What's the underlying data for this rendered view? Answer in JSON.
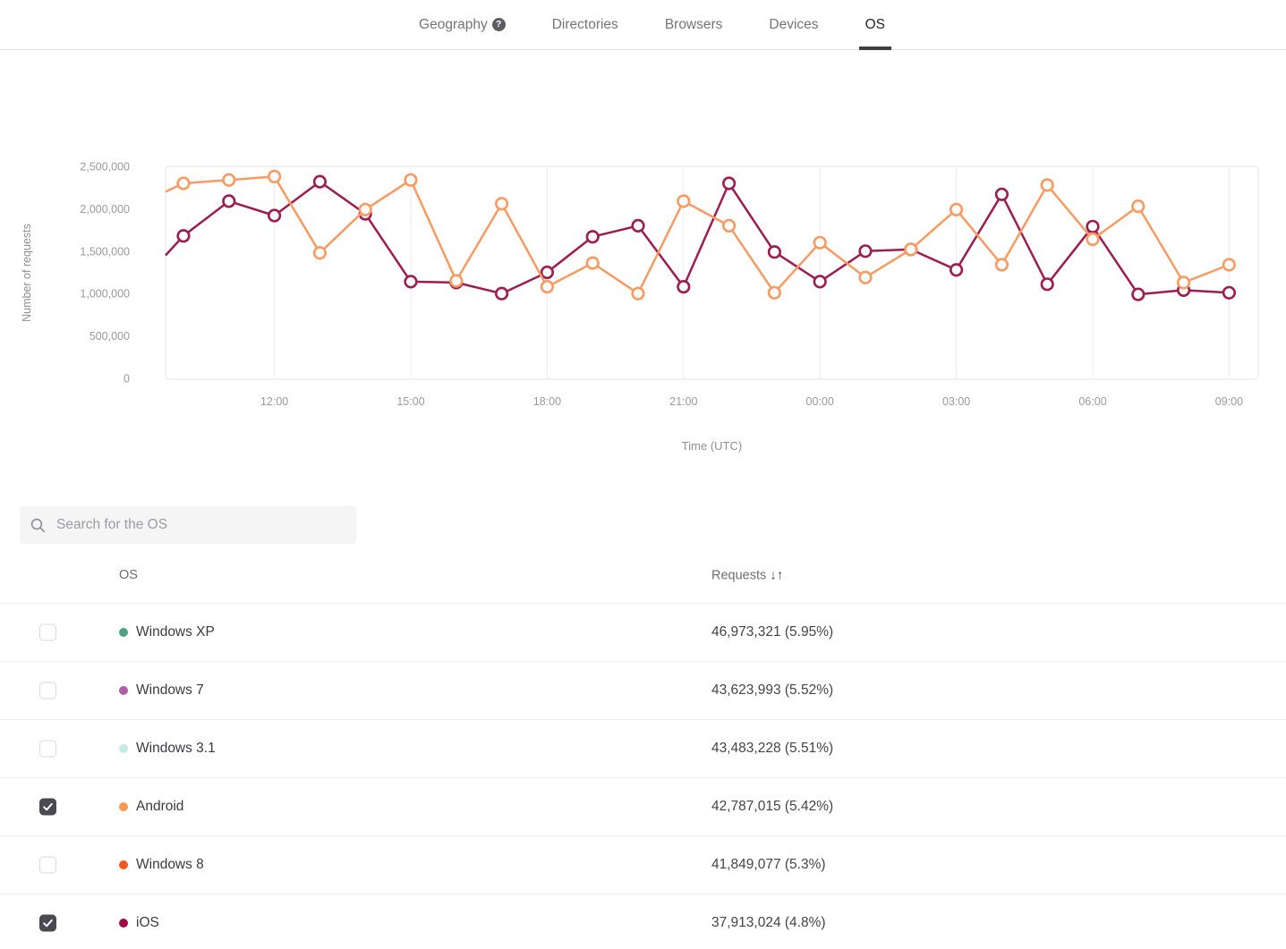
{
  "header": {
    "help_icon_glyph": "?",
    "tabs": [
      {
        "label": "Geography",
        "active": false,
        "has_help_icon": true
      },
      {
        "label": "Directories",
        "active": false,
        "has_help_icon": false
      },
      {
        "label": "Browsers",
        "active": false,
        "has_help_icon": false
      },
      {
        "label": "Devices",
        "active": false,
        "has_help_icon": false
      },
      {
        "label": "OS",
        "active": true,
        "has_help_icon": false
      }
    ]
  },
  "chart_data": {
    "type": "line",
    "title": "",
    "xlabel": "Time (UTC)",
    "ylabel": "Number of requests",
    "ylim": [
      0,
      2500000
    ],
    "grid": "vertical-only",
    "legend_position": "none (series toggled via table checkboxes)",
    "x": [
      "10:00",
      "11:00",
      "12:00",
      "13:00",
      "14:00",
      "15:00",
      "16:00",
      "17:00",
      "18:00",
      "19:00",
      "20:00",
      "21:00",
      "22:00",
      "23:00",
      "00:00",
      "01:00",
      "02:00",
      "03:00",
      "04:00",
      "05:00",
      "06:00",
      "07:00",
      "08:00",
      "09:00"
    ],
    "x_axis_ticks": [
      "12:00",
      "15:00",
      "18:00",
      "21:00",
      "00:00",
      "03:00",
      "06:00",
      "09:00"
    ],
    "y_axis_ticks": [
      "2,500,000",
      "2,000,000",
      "1,500,000",
      "1,000,000",
      "500,000",
      "0"
    ],
    "series": [
      {
        "name": "Android",
        "color": "#F89B62",
        "lead_in_value": 2200000,
        "values": [
          2300000,
          2340000,
          2380000,
          1480000,
          1990000,
          2340000,
          1150000,
          2060000,
          1080000,
          1360000,
          1000000,
          2090000,
          1800000,
          1010000,
          1600000,
          1190000,
          1520000,
          1990000,
          1340000,
          2280000,
          1640000,
          2030000,
          1130000,
          1340000
        ]
      },
      {
        "name": "iOS",
        "color": "#9E1D51",
        "lead_in_value": 1450000,
        "values": [
          1680000,
          2090000,
          1920000,
          2320000,
          1940000,
          1140000,
          1130000,
          1000000,
          1250000,
          1670000,
          1800000,
          1080000,
          2300000,
          1490000,
          1140000,
          1500000,
          1520000,
          1280000,
          2170000,
          1110000,
          1790000,
          990000,
          1040000,
          1010000
        ]
      }
    ]
  },
  "search": {
    "placeholder": "Search for the OS"
  },
  "table": {
    "columns": {
      "os": "OS",
      "requests": "Requests",
      "sort_icon": "↓↑"
    },
    "rows": [
      {
        "os": "Windows XP",
        "checked": false,
        "dot_color": "#4FA284",
        "requests": "46,973,321 (5.95%)"
      },
      {
        "os": "Windows 7",
        "checked": false,
        "dot_color": "#B15DA9",
        "requests": "43,623,993 (5.52%)"
      },
      {
        "os": "Windows 3.1",
        "checked": false,
        "dot_color": "#C5EBE5",
        "requests": "43,483,228 (5.51%)"
      },
      {
        "os": "Android",
        "checked": true,
        "dot_color": "#F9994F",
        "requests": "42,787,015 (5.42%)"
      },
      {
        "os": "Windows 8",
        "checked": false,
        "dot_color": "#F4581C",
        "requests": "41,849,077 (5.3%)"
      },
      {
        "os": "iOS",
        "checked": true,
        "dot_color": "#9A0E43",
        "requests": "37,913,024 (4.8%)"
      }
    ]
  }
}
